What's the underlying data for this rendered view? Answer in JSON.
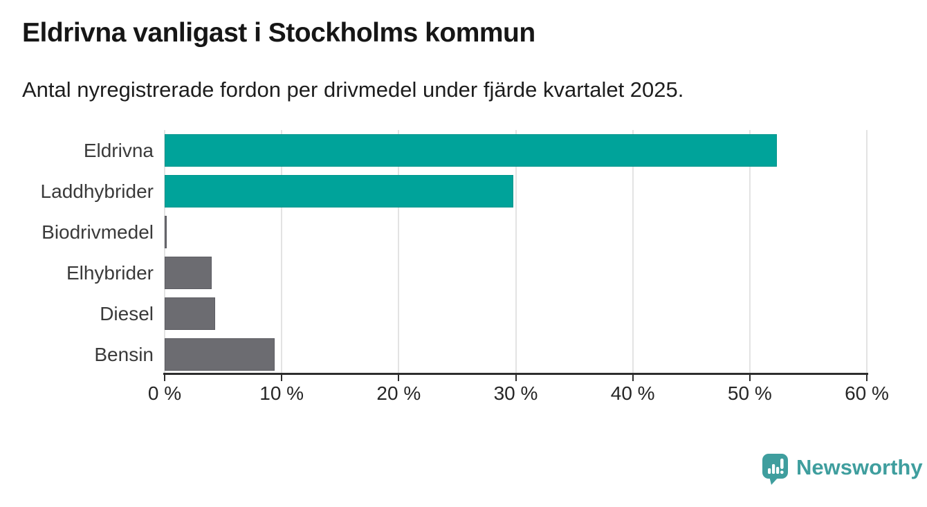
{
  "header": {
    "title": "Eldrivna vanligast i Stockholms kommun",
    "subtitle": "Antal nyregistrerade fordon per drivmedel under fjärde kvartalet 2025."
  },
  "chart_data": {
    "type": "bar",
    "orientation": "horizontal",
    "title": "Eldrivna vanligast i Stockholms kommun",
    "subtitle": "Antal nyregistrerade fordon per drivmedel under fjärde kvartalet 2025.",
    "categories": [
      "Eldrivna",
      "Laddhybrider",
      "Biodrivmedel",
      "Elhybrider",
      "Diesel",
      "Bensin"
    ],
    "values": [
      52.3,
      29.8,
      0.1,
      4.0,
      4.3,
      9.4
    ],
    "unit": "%",
    "xlabel": "",
    "ylabel": "",
    "xlim": [
      0,
      60
    ],
    "xticks": [
      0,
      10,
      20,
      30,
      40,
      50,
      60
    ],
    "xtick_labels": [
      "0 %",
      "10 %",
      "20 %",
      "30 %",
      "40 %",
      "50 %",
      "60 %"
    ],
    "grid": "vertical",
    "legend": "none",
    "bar_colors": [
      "#00a39a",
      "#00a39a",
      "#6c6c71",
      "#6c6c71",
      "#6c6c71",
      "#6c6c71"
    ],
    "bar_border_colors": [
      "#00958c",
      "#00958c",
      "#5d5d63",
      "#5d5d63",
      "#5d5d63",
      "#5d5d63"
    ],
    "gridline_color": "#e3e3e3",
    "axis_color": "#2d2d2d"
  },
  "footer": {
    "brand": "Newsworthy",
    "brand_color": "#3f9e9e",
    "icon": "newsworthy-speech-bubble-bar-chart"
  }
}
